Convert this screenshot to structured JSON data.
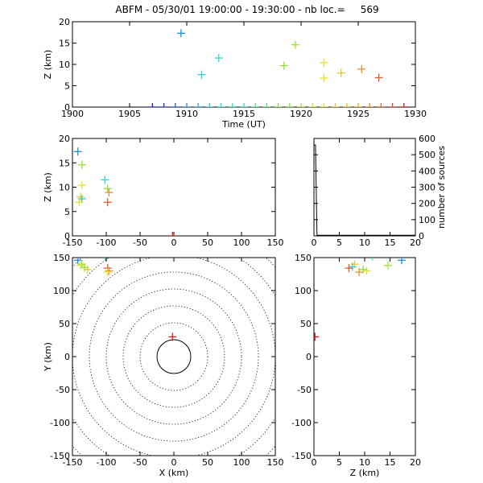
{
  "title": "ABFM - 05/30/01 19:00:00 - 19:30:00 - nb loc.=     569",
  "chart_data": [
    {
      "id": "time_z",
      "type": "scatter",
      "xlabel": "Time (UT)",
      "ylabel": "Z (km)",
      "xlim": [
        1900,
        1930
      ],
      "ylim": [
        0,
        20
      ],
      "xticks": [
        "1900",
        "1905",
        "1910",
        "1915",
        "1920",
        "1925",
        "1930"
      ],
      "yticks": [
        "0",
        "5",
        "10",
        "15",
        "20"
      ],
      "points": [
        {
          "x": 1907.0,
          "y": 0,
          "c": "#1a1acc"
        },
        {
          "x": 1908.0,
          "y": 0,
          "c": "#1a33d4"
        },
        {
          "x": 1909.0,
          "y": 0,
          "c": "#1e5ae0"
        },
        {
          "x": 1909.5,
          "y": 17.3,
          "c": "#1e90e0"
        },
        {
          "x": 1910.0,
          "y": 0,
          "c": "#2b8ce8"
        },
        {
          "x": 1911.0,
          "y": 0,
          "c": "#2aa8e6"
        },
        {
          "x": 1911.3,
          "y": 7.6,
          "c": "#2ad0e0"
        },
        {
          "x": 1912.0,
          "y": 0,
          "c": "#2ac6e6"
        },
        {
          "x": 1912.8,
          "y": 11.5,
          "c": "#2ad6d6"
        },
        {
          "x": 1913.0,
          "y": 0,
          "c": "#2ad6d6"
        },
        {
          "x": 1914.0,
          "y": 0,
          "c": "#33e0c0"
        },
        {
          "x": 1915.0,
          "y": 0,
          "c": "#3ee0a8"
        },
        {
          "x": 1916.0,
          "y": 0,
          "c": "#4ade8c"
        },
        {
          "x": 1917.0,
          "y": 0,
          "c": "#5ae070"
        },
        {
          "x": 1918.0,
          "y": 0,
          "c": "#6ee050"
        },
        {
          "x": 1918.5,
          "y": 9.7,
          "c": "#8ee03a"
        },
        {
          "x": 1919.0,
          "y": 0,
          "c": "#8ee03a"
        },
        {
          "x": 1919.5,
          "y": 14.6,
          "c": "#9ee03a"
        },
        {
          "x": 1920.0,
          "y": 0,
          "c": "#a8e030"
        },
        {
          "x": 1921.0,
          "y": 0,
          "c": "#c8e030"
        },
        {
          "x": 1922.0,
          "y": 0,
          "c": "#e0e030"
        },
        {
          "x": 1922.0,
          "y": 10.4,
          "c": "#e6e030"
        },
        {
          "x": 1922.0,
          "y": 6.8,
          "c": "#e6e030"
        },
        {
          "x": 1923.0,
          "y": 0,
          "c": "#e8d030"
        },
        {
          "x": 1923.5,
          "y": 8.0,
          "c": "#e8c830"
        },
        {
          "x": 1924.0,
          "y": 0,
          "c": "#e8b830"
        },
        {
          "x": 1925.0,
          "y": 0,
          "c": "#e8a030"
        },
        {
          "x": 1925.3,
          "y": 8.9,
          "c": "#e09030"
        },
        {
          "x": 1926.0,
          "y": 0,
          "c": "#e08030"
        },
        {
          "x": 1926.8,
          "y": 6.9,
          "c": "#e05a28"
        },
        {
          "x": 1927.0,
          "y": 0,
          "c": "#e06030"
        },
        {
          "x": 1928.0,
          "y": 0,
          "c": "#e04030"
        },
        {
          "x": 1929.0,
          "y": 0,
          "c": "#e01818"
        }
      ]
    },
    {
      "id": "x_z",
      "type": "scatter",
      "xlabel": "",
      "ylabel": "Z (km)",
      "xlim": [
        -150,
        150
      ],
      "ylim": [
        0,
        20
      ],
      "xticks": [
        "-150",
        "-100",
        "-50",
        "0",
        "50",
        "100",
        "150"
      ],
      "yticks": [
        "0",
        "5",
        "10",
        "15",
        "20"
      ],
      "points": [
        {
          "x": -142,
          "y": 17.3,
          "c": "#1e90e0"
        },
        {
          "x": -136,
          "y": 14.6,
          "c": "#9ee03a"
        },
        {
          "x": -102,
          "y": 11.5,
          "c": "#2ad6d6"
        },
        {
          "x": -136,
          "y": 10.4,
          "c": "#e6e030"
        },
        {
          "x": -98,
          "y": 9.7,
          "c": "#8ee03a"
        },
        {
          "x": -96,
          "y": 8.9,
          "c": "#e09030"
        },
        {
          "x": -138,
          "y": 8.0,
          "c": "#e8c830"
        },
        {
          "x": -136,
          "y": 7.6,
          "c": "#2ad0e0"
        },
        {
          "x": -140,
          "y": 6.9,
          "c": "#e6e030"
        },
        {
          "x": -98,
          "y": 6.9,
          "c": "#e05a28"
        },
        {
          "x": -2,
          "y": 0,
          "c": "#e01818"
        }
      ]
    },
    {
      "id": "histogram",
      "type": "line",
      "xlabel": "",
      "ylabel": "number of sources",
      "xlim": [
        0,
        20
      ],
      "ylim": [
        0,
        600
      ],
      "xticks": [
        "0",
        "5",
        "10",
        "15",
        "20"
      ],
      "yticks": [
        "0",
        "100",
        "200",
        "300",
        "400",
        "500",
        "600"
      ],
      "x": [
        0,
        0.3,
        0.6,
        20
      ],
      "y": [
        560,
        560,
        4,
        4
      ]
    },
    {
      "id": "x_y",
      "type": "scatter",
      "xlabel": "X (km)",
      "ylabel": "Y (km)",
      "xlim": [
        -150,
        150
      ],
      "ylim": [
        -150,
        150
      ],
      "xticks": [
        "-150",
        "-100",
        "-50",
        "0",
        "50",
        "100",
        "150"
      ],
      "yticks": [
        "-150",
        "-100",
        "-50",
        "0",
        "50",
        "100",
        "150"
      ],
      "range_rings_km": [
        25,
        50,
        75,
        100,
        125,
        150,
        175,
        200
      ],
      "points": [
        {
          "x": -142,
          "y": 146,
          "c": "#1e90e0"
        },
        {
          "x": -136,
          "y": 140,
          "c": "#9ee03a"
        },
        {
          "x": -102,
          "y": 152,
          "c": "#2ad6d6"
        },
        {
          "x": -138,
          "y": 138,
          "c": "#e6e030"
        },
        {
          "x": -132,
          "y": 135,
          "c": "#8ee03a"
        },
        {
          "x": -128,
          "y": 132,
          "c": "#e8c830"
        },
        {
          "x": -98,
          "y": 134,
          "c": "#e05a28"
        },
        {
          "x": -96,
          "y": 130,
          "c": "#e09030"
        },
        {
          "x": -98,
          "y": 128,
          "c": "#e6e030"
        },
        {
          "x": -2,
          "y": 30,
          "c": "#e01818"
        }
      ]
    },
    {
      "id": "z_y",
      "type": "scatter",
      "xlabel": "Z (km)",
      "ylabel": "",
      "xlim": [
        0,
        20
      ],
      "ylim": [
        -150,
        150
      ],
      "xticks": [
        "0",
        "5",
        "10",
        "15",
        "20"
      ],
      "yticks": [
        "-150",
        "-100",
        "-50",
        "0",
        "50",
        "100",
        "150"
      ],
      "points": [
        {
          "x": 17.3,
          "y": 146,
          "c": "#1e90e0"
        },
        {
          "x": 14.6,
          "y": 138,
          "c": "#9ee03a"
        },
        {
          "x": 11.5,
          "y": 152,
          "c": "#2ad6d6"
        },
        {
          "x": 8.0,
          "y": 140,
          "c": "#e8c830"
        },
        {
          "x": 7.6,
          "y": 136,
          "c": "#2ad0e0"
        },
        {
          "x": 6.9,
          "y": 134,
          "c": "#e05a28"
        },
        {
          "x": 10.4,
          "y": 130,
          "c": "#e6e030"
        },
        {
          "x": 9.7,
          "y": 132,
          "c": "#8ee03a"
        },
        {
          "x": 8.9,
          "y": 128,
          "c": "#e09030"
        },
        {
          "x": 0.2,
          "y": 30,
          "c": "#e01818"
        }
      ]
    }
  ]
}
